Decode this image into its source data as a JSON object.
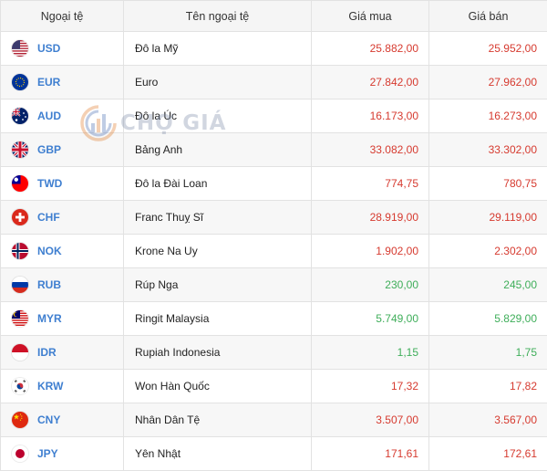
{
  "headers": {
    "code": "Ngoại tệ",
    "name": "Tên ngoại tệ",
    "buy": "Giá mua",
    "sell": "Giá bán"
  },
  "watermark": {
    "text": "CHỢ GIÁ"
  },
  "colors": {
    "up": "#d63a2f",
    "down": "#3fae5a",
    "code": "#3f7fd0"
  },
  "rows": [
    {
      "code": "USD",
      "name": "Đô la Mỹ",
      "buy": "25.882,00",
      "sell": "25.952,00",
      "trend": "up",
      "flag": "us-flag-icon"
    },
    {
      "code": "EUR",
      "name": "Euro",
      "buy": "27.842,00",
      "sell": "27.962,00",
      "trend": "up",
      "flag": "eu-flag-icon"
    },
    {
      "code": "AUD",
      "name": "Đô la Úc",
      "buy": "16.173,00",
      "sell": "16.273,00",
      "trend": "up",
      "flag": "au-flag-icon"
    },
    {
      "code": "GBP",
      "name": "Bảng Anh",
      "buy": "33.082,00",
      "sell": "33.302,00",
      "trend": "up",
      "flag": "gb-flag-icon"
    },
    {
      "code": "TWD",
      "name": "Đô la Đài Loan",
      "buy": "774,75",
      "sell": "780,75",
      "trend": "up",
      "flag": "tw-flag-icon"
    },
    {
      "code": "CHF",
      "name": "Franc Thuỵ Sĩ",
      "buy": "28.919,00",
      "sell": "29.119,00",
      "trend": "up",
      "flag": "ch-flag-icon"
    },
    {
      "code": "NOK",
      "name": "Krone Na Uy",
      "buy": "1.902,00",
      "sell": "2.302,00",
      "trend": "up",
      "flag": "no-flag-icon"
    },
    {
      "code": "RUB",
      "name": "Rúp Nga",
      "buy": "230,00",
      "sell": "245,00",
      "trend": "down",
      "flag": "ru-flag-icon"
    },
    {
      "code": "MYR",
      "name": "Ringit Malaysia",
      "buy": "5.749,00",
      "sell": "5.829,00",
      "trend": "down",
      "flag": "my-flag-icon"
    },
    {
      "code": "IDR",
      "name": "Rupiah Indonesia",
      "buy": "1,15",
      "sell": "1,75",
      "trend": "down",
      "flag": "id-flag-icon"
    },
    {
      "code": "KRW",
      "name": "Won Hàn Quốc",
      "buy": "17,32",
      "sell": "17,82",
      "trend": "up",
      "flag": "kr-flag-icon"
    },
    {
      "code": "CNY",
      "name": "Nhân Dân Tệ",
      "buy": "3.507,00",
      "sell": "3.567,00",
      "trend": "up",
      "flag": "cn-flag-icon"
    },
    {
      "code": "JPY",
      "name": "Yên Nhật",
      "buy": "171,61",
      "sell": "172,61",
      "trend": "up",
      "flag": "jp-flag-icon"
    }
  ]
}
